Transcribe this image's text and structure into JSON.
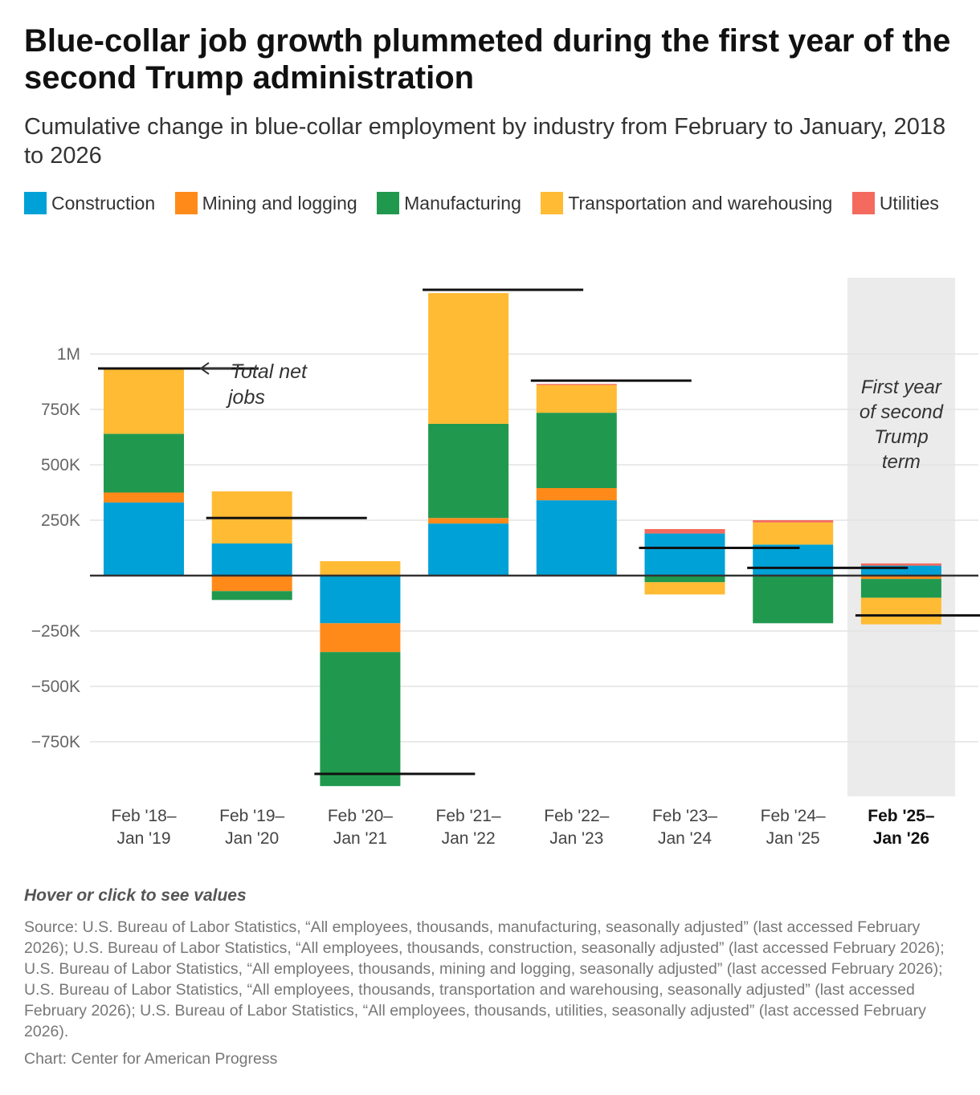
{
  "header": {
    "title": "Blue-collar job growth plummeted during the first year of the second Trump administration",
    "subtitle": "Cumulative change in blue-collar employment by industry from February to January, 2018 to 2026"
  },
  "legend": [
    {
      "label": "Construction",
      "color": "#00a1d6"
    },
    {
      "label": "Mining and logging",
      "color": "#ff8a1a"
    },
    {
      "label": "Manufacturing",
      "color": "#20994f"
    },
    {
      "label": "Transportation and warehousing",
      "color": "#ffbb33"
    },
    {
      "label": "Utilities",
      "color": "#f46a5e"
    }
  ],
  "chart_data": {
    "type": "bar",
    "stacked": true,
    "categories": [
      [
        "Feb '18–",
        "Jan '19"
      ],
      [
        "Feb '19–",
        "Jan '20"
      ],
      [
        "Feb '20–",
        "Jan '21"
      ],
      [
        "Feb '21–",
        "Jan '22"
      ],
      [
        "Feb '22–",
        "Jan '23"
      ],
      [
        "Feb '23–",
        "Jan '24"
      ],
      [
        "Feb '24–",
        "Jan '25"
      ],
      [
        "Feb '25–",
        "Jan '26"
      ]
    ],
    "highlighted_category_index": 7,
    "series": [
      {
        "name": "Construction",
        "color": "#00a1d6",
        "values": [
          330000,
          145000,
          -215000,
          235000,
          340000,
          190000,
          140000,
          45000
        ]
      },
      {
        "name": "Mining and logging",
        "color": "#ff8a1a",
        "values": [
          45000,
          -70000,
          -130000,
          25000,
          55000,
          0,
          0,
          -15000
        ]
      },
      {
        "name": "Manufacturing",
        "color": "#20994f",
        "values": [
          265000,
          -40000,
          -605000,
          425000,
          340000,
          -30000,
          -215000,
          -85000
        ]
      },
      {
        "name": "Transportation and warehousing",
        "color": "#ffbb33",
        "values": [
          290000,
          235000,
          65000,
          590000,
          125000,
          -55000,
          100000,
          -120000
        ]
      },
      {
        "name": "Utilities",
        "color": "#f46a5e",
        "values": [
          0,
          0,
          0,
          0,
          5000,
          20000,
          10000,
          10000
        ]
      }
    ],
    "total_net_jobs": [
      935000,
      260000,
      -895000,
      1290000,
      880000,
      125000,
      35000,
      -180000
    ],
    "y_ticks": [
      -750000,
      -500000,
      -250000,
      250000,
      500000,
      750000,
      1000000
    ],
    "y_tick_labels": [
      "−750K",
      "−500K",
      "−250K",
      "250K",
      "500K",
      "750K",
      "1M"
    ],
    "ylim": [
      -960000,
      1290000
    ],
    "grid": true,
    "annotations": {
      "total_net_jobs": [
        "Total net",
        "jobs"
      ],
      "highlight": [
        "First year",
        "of second",
        "Trump",
        "term"
      ]
    }
  },
  "footer": {
    "note": "Hover or click to see values",
    "source": "Source: U.S. Bureau of Labor Statistics, “All employees, thousands, manufacturing, seasonally adjusted” (last accessed February 2026); U.S. Bureau of Labor Statistics, “All employees, thousands, construction, seasonally adjusted” (last accessed February 2026); U.S. Bureau of Labor Statistics, “All employees, thousands, mining and logging, seasonally adjusted” (last accessed February 2026); U.S. Bureau of Labor Statistics, “All employees, thousands, transportation and warehousing, seasonally adjusted” (last accessed February 2026); U.S. Bureau of Labor Statistics, “All employees, thousands, utilities, seasonally adjusted” (last accessed February 2026).",
    "credit": "Chart: Center for American Progress"
  }
}
